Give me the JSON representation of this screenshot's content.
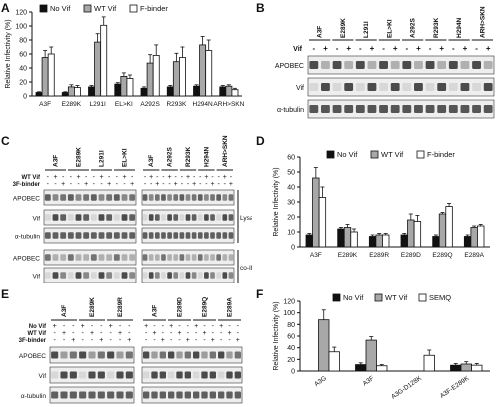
{
  "panel_labels": [
    "A",
    "B",
    "C",
    "D",
    "E",
    "F"
  ],
  "legend_a": [
    "No Vif",
    "WT Vif",
    "F-binder"
  ],
  "legend_f": [
    "No Vif",
    "WT Vif",
    "SEMQ"
  ],
  "y_label": "Relative Infectivity (%)",
  "colors": {
    "none": "#111111",
    "wt": "#a8a8a8",
    "binder": "#ffffff"
  },
  "blot_b": {
    "headers": [
      "A3F",
      "E289K",
      "L291I",
      "EL>KI",
      "A292S",
      "R293K",
      "H294N",
      "ARH>SKN"
    ],
    "vif_row_label": "Vif",
    "vif_signs": [
      "-",
      "+",
      "-",
      "+",
      "-",
      "+",
      "-",
      "+",
      "-",
      "+",
      "-",
      "+",
      "-",
      "+",
      "-",
      "+"
    ],
    "bands": [
      "APOBEC",
      "Vif",
      "α-tubulin"
    ]
  },
  "blot_c": {
    "left_headers": [
      "A3F",
      "E289K",
      "L291I",
      "EL>KI"
    ],
    "right_headers": [
      "A3F",
      "A292S",
      "R293K",
      "H294N",
      "ARH>SKN"
    ],
    "row_labels": [
      "WT Vif",
      "3F-binder"
    ],
    "row1_signs": [
      "-",
      "+",
      "-",
      "-",
      "+",
      "-",
      "-",
      "+",
      "-",
      "-",
      "+",
      "-"
    ],
    "row2_signs": [
      "-",
      "-",
      "+",
      "-",
      "-",
      "+",
      "-",
      "-",
      "+",
      "-",
      "-",
      "+"
    ],
    "row1_signs_r": [
      "-",
      "+",
      "-",
      "-",
      "+",
      "-",
      "-",
      "+",
      "-",
      "-",
      "+",
      "-",
      "-",
      "+",
      "-"
    ],
    "row2_signs_r": [
      "-",
      "-",
      "+",
      "-",
      "-",
      "+",
      "-",
      "-",
      "+",
      "-",
      "-",
      "+",
      "-",
      "-",
      "+"
    ],
    "bands": [
      "APOBEC",
      "Vif",
      "α-tubulin",
      "APOBEC",
      "Vif"
    ],
    "lysates": "Lysates",
    "coip": "co-IP"
  },
  "blot_e": {
    "left_headers": [
      "A3F",
      "E289K",
      "E289R"
    ],
    "right_headers": [
      "A3F",
      "E289D",
      "E289Q",
      "E289A"
    ],
    "row_labels": [
      "No Vif",
      "WT Vif",
      "3F-binder"
    ],
    "bands": [
      "APOBEC",
      "Vif",
      "α-tubulin"
    ]
  },
  "chart_data": [
    {
      "panel": "A",
      "type": "bar",
      "ylabel": "Relative Infectivity (%)",
      "ylim": [
        0,
        120
      ],
      "yticks": [
        "0",
        "20",
        "40",
        "60",
        "80",
        "100",
        "120"
      ],
      "categories": [
        "A3F",
        "E289K",
        "L291I",
        "EL>KI",
        "A292S",
        "R293K",
        "H294N",
        "ARH>SKN"
      ],
      "series": [
        {
          "name": "No Vif",
          "values": [
            5,
            5,
            13,
            17,
            11,
            13,
            14,
            13
          ],
          "errors": [
            1,
            1,
            2,
            2,
            2,
            2,
            2,
            2
          ]
        },
        {
          "name": "WT Vif",
          "values": [
            55,
            13,
            77,
            28,
            47,
            49,
            73,
            14
          ],
          "errors": [
            10,
            3,
            12,
            5,
            12,
            12,
            12,
            2
          ]
        },
        {
          "name": "F-binder",
          "values": [
            60,
            12,
            101,
            25,
            58,
            55,
            65,
            9
          ],
          "errors": [
            10,
            3,
            12,
            5,
            15,
            15,
            15,
            2
          ]
        }
      ]
    },
    {
      "panel": "D",
      "type": "bar",
      "ylabel": "Relative Infectivity (%)",
      "ylim": [
        0,
        60
      ],
      "yticks": [
        "0",
        "10",
        "20",
        "30",
        "40",
        "50",
        "60"
      ],
      "categories": [
        "A3F",
        "E289K",
        "E289R",
        "E289D",
        "E289Q",
        "E289A"
      ],
      "series": [
        {
          "name": "No Vif",
          "values": [
            8,
            12,
            7,
            8,
            7,
            7
          ],
          "errors": [
            1,
            1,
            1,
            1,
            1,
            1
          ]
        },
        {
          "name": "WT Vif",
          "values": [
            46,
            13,
            8,
            18,
            22,
            13
          ],
          "errors": [
            7,
            2,
            1,
            4,
            1,
            1
          ]
        },
        {
          "name": "F-binder",
          "values": [
            33,
            10,
            8,
            17,
            27,
            14
          ],
          "errors": [
            7,
            2,
            1,
            4,
            2,
            1
          ]
        }
      ]
    },
    {
      "panel": "F",
      "type": "bar",
      "ylabel": "Relative Infectivity (%)",
      "ylim": [
        0,
        120
      ],
      "yticks": [
        "0",
        "20",
        "40",
        "60",
        "80",
        "100",
        "120"
      ],
      "categories": [
        "A3G",
        "A3F",
        "A3G-D128K",
        "A3F-E289K"
      ],
      "series": [
        {
          "name": "No Vif",
          "values": [
            0,
            11,
            0,
            10
          ],
          "errors": [
            0,
            3,
            0,
            3
          ]
        },
        {
          "name": "WT Vif",
          "values": [
            88,
            53,
            0,
            12
          ],
          "errors": [
            17,
            6,
            0,
            4
          ]
        },
        {
          "name": "SEMQ",
          "values": [
            33,
            9,
            27,
            10
          ],
          "errors": [
            8,
            2,
            9,
            3
          ]
        }
      ]
    }
  ]
}
